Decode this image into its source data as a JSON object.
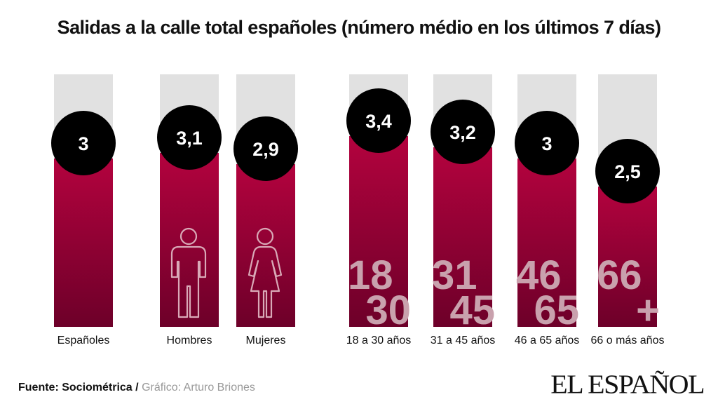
{
  "chart_data": {
    "type": "bar",
    "title": "Salidas a la calle total españoles (número médio en los últimos 7 días)",
    "ylim": [
      0,
      4.5
    ],
    "categories": [
      "Españoles",
      "Hombres",
      "Mujeres",
      "18 a 30 años",
      "31 a 45 años",
      "46 a 65 años",
      "66 o más años"
    ],
    "values": [
      3,
      3.1,
      2.9,
      3.4,
      3.2,
      3,
      2.5
    ],
    "value_labels": [
      "3",
      "3,1",
      "2,9",
      "3,4",
      "3,2",
      "3",
      "2,5"
    ],
    "overlay_labels": [
      [],
      [],
      [],
      [
        "18",
        "30"
      ],
      [
        "31",
        "45"
      ],
      [
        "46",
        "65"
      ],
      [
        "66",
        "+"
      ]
    ],
    "icons": [
      "",
      "man-icon",
      "woman-icon",
      "",
      "",
      "",
      ""
    ],
    "colors": {
      "bar_top": "#b3023e",
      "bar_bottom": "#6d0029",
      "track": "#e1e1e1",
      "bubble": "#000000",
      "bubble_text": "#ffffff",
      "overlay_text": "#c9a1ad",
      "icon_stroke": "#d9a9b7"
    }
  },
  "footer": {
    "source": "Fuente: Sociométrica",
    "separator": "/",
    "credit": "Gráfico: Arturo Briones"
  },
  "logo": "EL ESPAÑOL"
}
